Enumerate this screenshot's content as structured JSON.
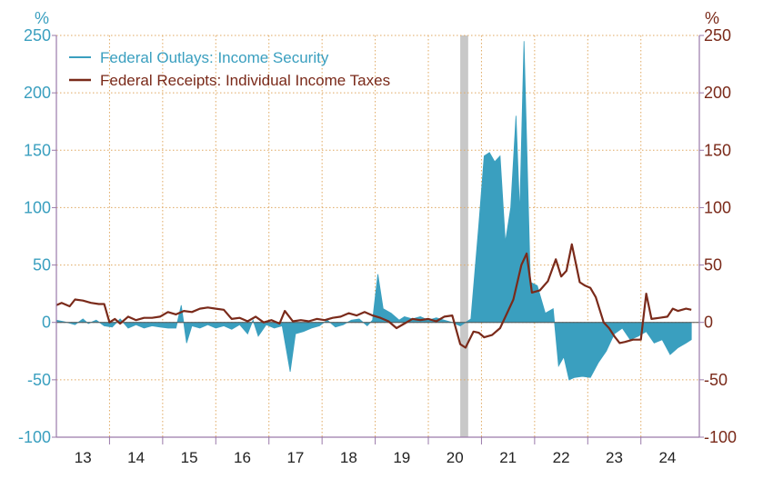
{
  "chart_data": {
    "type": "area",
    "title": "",
    "xlabel": "",
    "ylabel_left": "%",
    "ylabel_right": "%",
    "ylim": [
      -100,
      250
    ],
    "yticks": [
      -100,
      -50,
      0,
      50,
      100,
      150,
      200,
      250
    ],
    "xlim": [
      2012.5,
      2024.6
    ],
    "x_tick_labels": [
      "13",
      "14",
      "15",
      "16",
      "17",
      "18",
      "19",
      "20",
      "21",
      "22",
      "23",
      "24"
    ],
    "x_tick_label_positions": [
      2013,
      2014,
      2015,
      2016,
      2017,
      2018,
      2019,
      2020,
      2021,
      2022,
      2023,
      2024
    ],
    "x_ticks": [
      2013.5,
      2014.5,
      2015.5,
      2016.5,
      2017.5,
      2018.5,
      2019.5,
      2020.5,
      2021.5,
      2022.5,
      2023.5
    ],
    "grid": true,
    "recession": {
      "start": 2020.1,
      "end": 2020.25
    },
    "legend": {
      "position": "top-left"
    },
    "colors": {
      "outlays": "#3a9fbf",
      "receipts": "#7a2a1a",
      "grid": "#e0a860",
      "recession": "#c8c8c8",
      "frame": "#9a7aaa"
    },
    "series": [
      {
        "name": "Federal Outlays: Income Security",
        "style": "area",
        "x": [
          2012.5,
          2012.7,
          2012.85,
          2013.0,
          2013.1,
          2013.25,
          2013.4,
          2013.55,
          2013.7,
          2013.85,
          2014.0,
          2014.15,
          2014.3,
          2014.45,
          2014.6,
          2014.75,
          2014.85,
          2014.95,
          2015.05,
          2015.2,
          2015.35,
          2015.5,
          2015.65,
          2015.8,
          2015.95,
          2016.1,
          2016.2,
          2016.3,
          2016.45,
          2016.6,
          2016.75,
          2016.9,
          2017.0,
          2017.15,
          2017.3,
          2017.45,
          2017.6,
          2017.75,
          2017.9,
          2018.05,
          2018.2,
          2018.35,
          2018.45,
          2018.55,
          2018.65,
          2018.8,
          2018.95,
          2019.05,
          2019.2,
          2019.35,
          2019.5,
          2019.65,
          2019.8,
          2019.95,
          2020.1,
          2020.3,
          2020.45,
          2020.55,
          2020.65,
          2020.75,
          2020.85,
          2020.95,
          2021.05,
          2021.15,
          2021.22,
          2021.3,
          2021.42,
          2021.55,
          2021.7,
          2021.85,
          2021.95,
          2022.05,
          2022.15,
          2022.25,
          2022.4,
          2022.55,
          2022.7,
          2022.85,
          2023.0,
          2023.15,
          2023.3,
          2023.45,
          2023.6,
          2023.75,
          2023.9,
          2024.05,
          2024.2,
          2024.35,
          2024.45
        ],
        "values": [
          2,
          0,
          -2,
          3,
          -1,
          2,
          -3,
          -4,
          3,
          -5,
          -2,
          -5,
          -3,
          -4,
          -5,
          -5,
          15,
          -18,
          -3,
          -5,
          -2,
          -5,
          -3,
          -6,
          -2,
          -10,
          2,
          -12,
          -2,
          -5,
          -3,
          -43,
          -10,
          -8,
          -5,
          -3,
          2,
          -4,
          -2,
          2,
          3,
          -3,
          2,
          42,
          12,
          8,
          2,
          5,
          3,
          5,
          2,
          4,
          2,
          0,
          -3,
          3,
          85,
          145,
          148,
          140,
          145,
          70,
          100,
          180,
          95,
          245,
          35,
          32,
          8,
          12,
          -38,
          -30,
          -50,
          -48,
          -47,
          -48,
          -35,
          -25,
          -10,
          -5,
          -15,
          -12,
          -8,
          -18,
          -15,
          -28,
          -22,
          -18,
          -15
        ]
      },
      {
        "name": "Federal Receipts: Individual Income Taxes",
        "style": "line",
        "x": [
          2012.5,
          2012.6,
          2012.75,
          2012.85,
          2013.0,
          2013.15,
          2013.3,
          2013.4,
          2013.5,
          2013.6,
          2013.7,
          2013.85,
          2014.0,
          2014.15,
          2014.3,
          2014.45,
          2014.6,
          2014.75,
          2014.9,
          2015.05,
          2015.2,
          2015.35,
          2015.5,
          2015.65,
          2015.8,
          2015.95,
          2016.1,
          2016.25,
          2016.4,
          2016.55,
          2016.7,
          2016.8,
          2016.95,
          2017.1,
          2017.25,
          2017.4,
          2017.55,
          2017.7,
          2017.85,
          2018.0,
          2018.15,
          2018.3,
          2018.45,
          2018.6,
          2018.75,
          2018.9,
          2019.05,
          2019.2,
          2019.35,
          2019.5,
          2019.65,
          2019.8,
          2019.95,
          2020.1,
          2020.2,
          2020.35,
          2020.45,
          2020.55,
          2020.7,
          2020.85,
          2021.0,
          2021.1,
          2021.25,
          2021.35,
          2021.45,
          2021.6,
          2021.75,
          2021.9,
          2022.0,
          2022.1,
          2022.2,
          2022.35,
          2022.45,
          2022.55,
          2022.65,
          2022.8,
          2022.9,
          2023.0,
          2023.1,
          2023.2,
          2023.35,
          2023.5,
          2023.6,
          2023.7,
          2023.85,
          2024.0,
          2024.1,
          2024.2,
          2024.35,
          2024.45
        ],
        "values": [
          15,
          17,
          14,
          20,
          19,
          17,
          16,
          16,
          0,
          3,
          -1,
          5,
          2,
          4,
          4,
          5,
          9,
          7,
          10,
          9,
          12,
          13,
          12,
          11,
          3,
          4,
          1,
          5,
          0,
          2,
          -1,
          10,
          1,
          2,
          1,
          3,
          2,
          4,
          5,
          8,
          6,
          9,
          6,
          4,
          1,
          -5,
          -1,
          3,
          2,
          3,
          1,
          5,
          6,
          -19,
          -22,
          -8,
          -9,
          -13,
          -11,
          -5,
          10,
          20,
          50,
          60,
          26,
          28,
          36,
          55,
          40,
          45,
          68,
          35,
          32,
          30,
          22,
          0,
          -5,
          -12,
          -18,
          -17,
          -15,
          -15,
          25,
          3,
          4,
          5,
          12,
          10,
          12,
          11
        ]
      }
    ]
  }
}
